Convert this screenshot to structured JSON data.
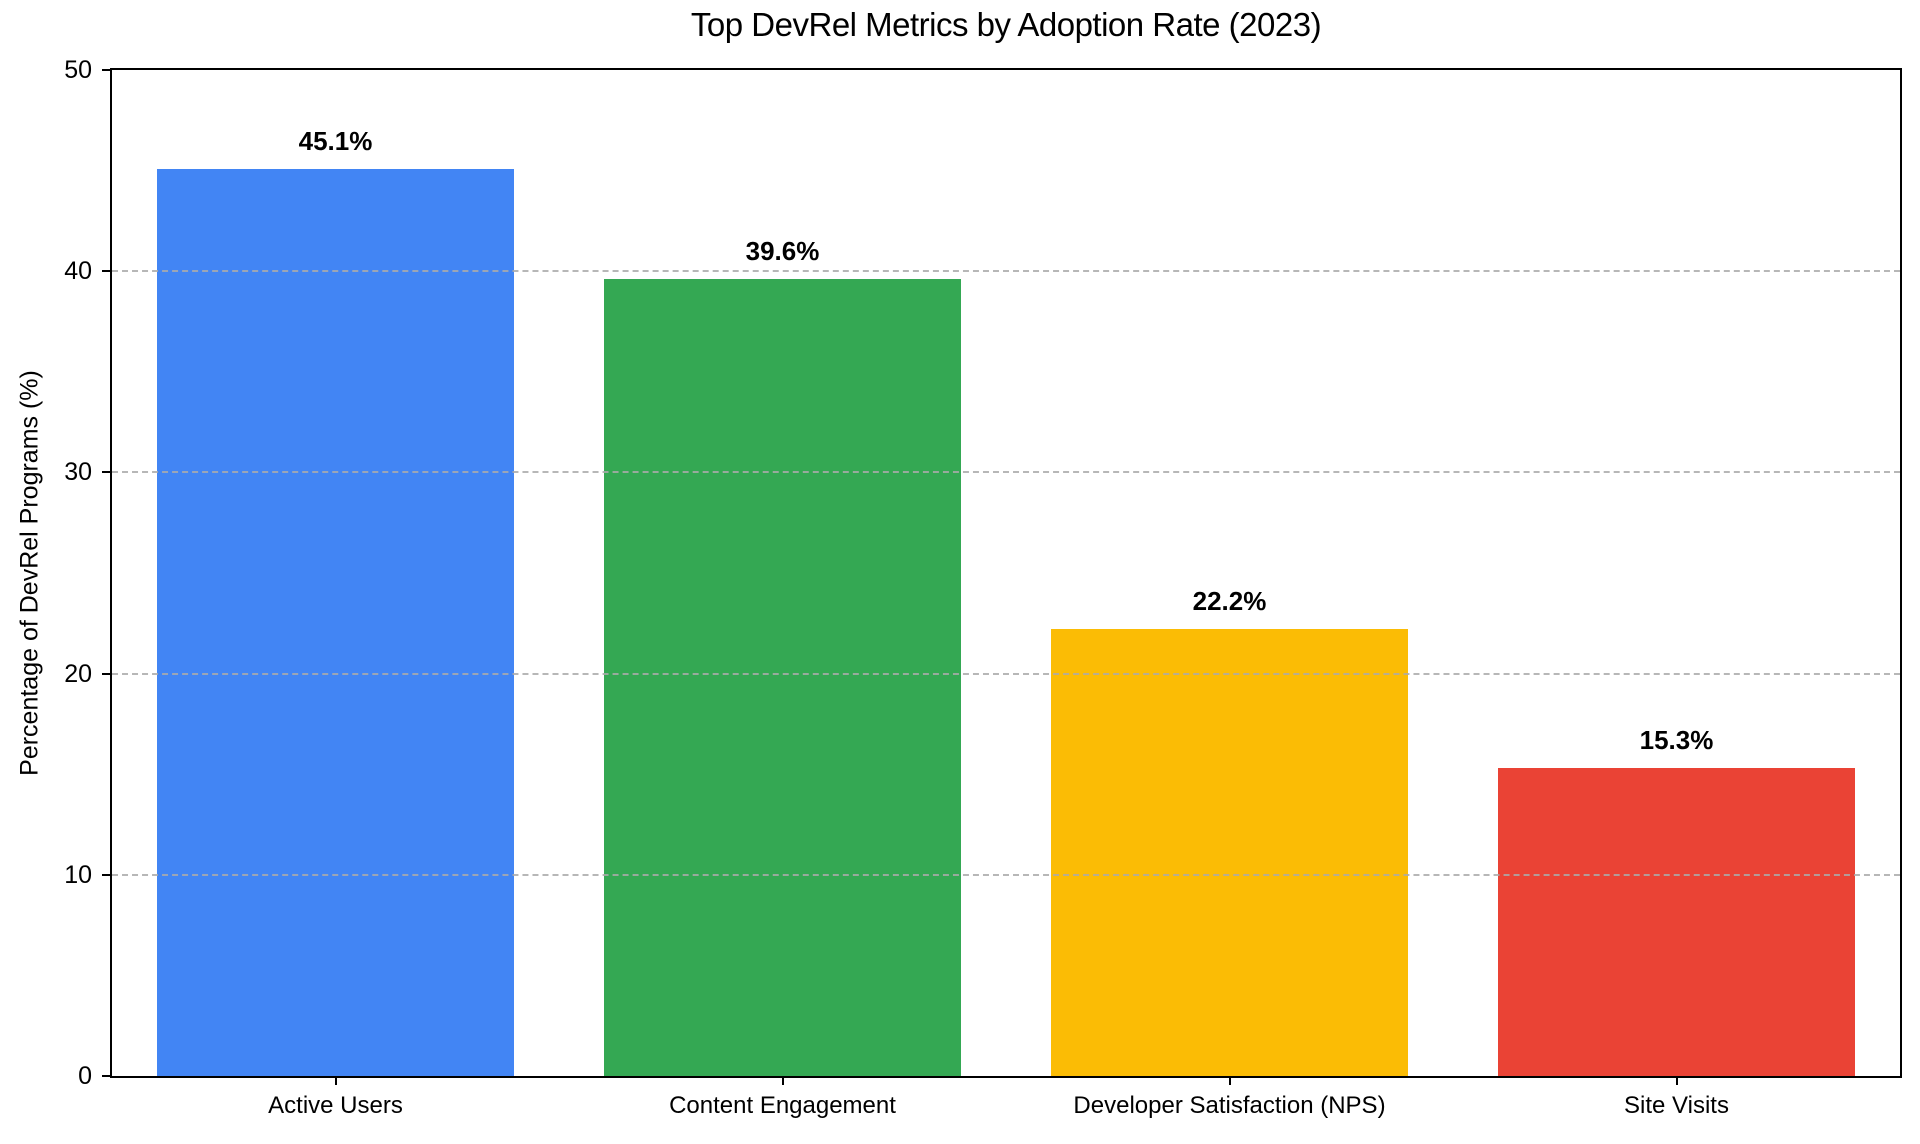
{
  "chart_data": {
    "type": "bar",
    "title": "Top DevRel Metrics by Adoption Rate (2023)",
    "xlabel": "",
    "ylabel": "Percentage of DevRel Programs (%)",
    "categories": [
      "Active Users",
      "Content Engagement",
      "Developer Satisfaction (NPS)",
      "Site Visits"
    ],
    "values": [
      45.1,
      39.6,
      22.2,
      15.3
    ],
    "value_labels": [
      "45.1%",
      "39.6%",
      "22.2%",
      "15.3%"
    ],
    "bar_colors": [
      "#4285F4",
      "#34A853",
      "#FBBC05",
      "#EA4335"
    ],
    "ylim": [
      0,
      50
    ],
    "yticks": [
      0,
      10,
      20,
      30,
      40,
      50
    ],
    "grid": "horizontal-dashed-over-bars",
    "gridline_color": "#aaaaaa",
    "legend": "none",
    "bar_width_fraction": 0.8
  }
}
